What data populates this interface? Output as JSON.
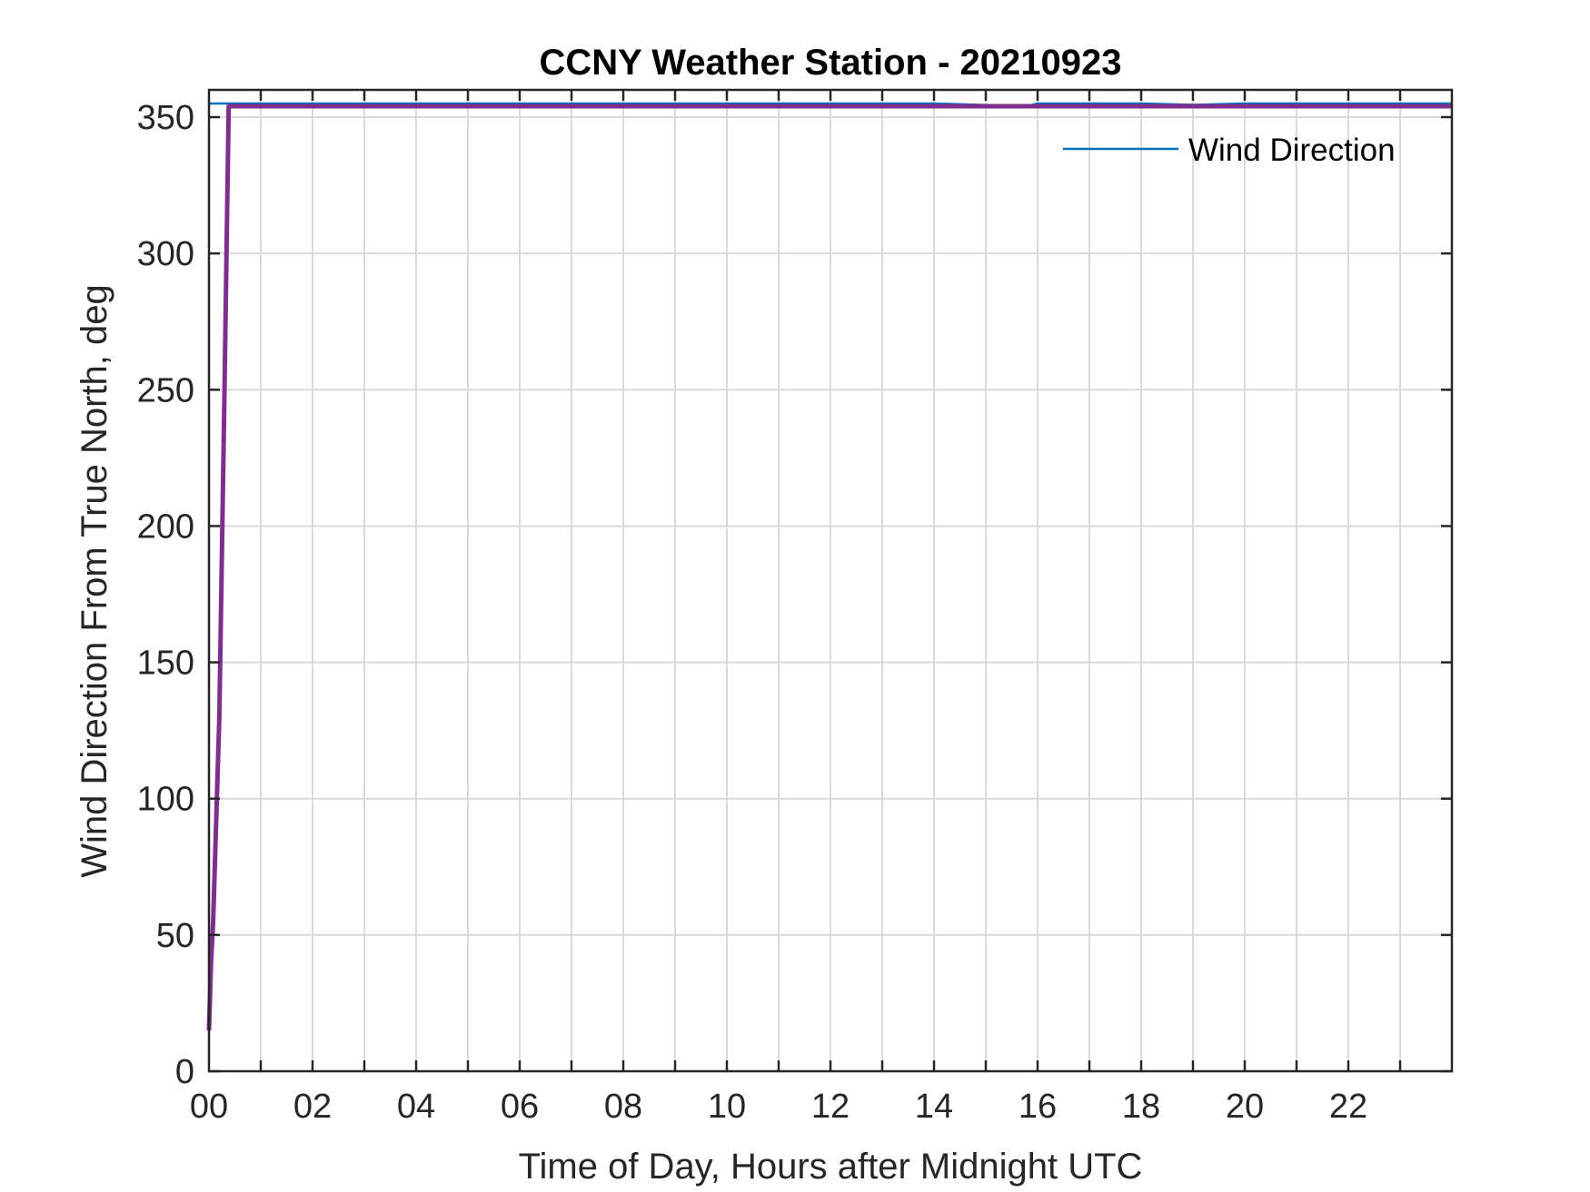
{
  "chart_data": {
    "type": "line",
    "title": "CCNY Weather Station - 20210923",
    "xlabel": "Time of Day, Hours after Midnight UTC",
    "ylabel": "Wind Direction From True North, deg",
    "xlim": [
      0,
      24
    ],
    "ylim": [
      0,
      360
    ],
    "xticks": [
      0,
      2,
      4,
      6,
      8,
      10,
      12,
      14,
      16,
      18,
      20,
      22
    ],
    "xtick_labels": [
      "00",
      "02",
      "04",
      "06",
      "08",
      "10",
      "12",
      "14",
      "16",
      "18",
      "20",
      "22"
    ],
    "yticks": [
      0,
      50,
      100,
      150,
      200,
      250,
      300,
      350
    ],
    "ytick_labels": [
      "0",
      "50",
      "100",
      "150",
      "200",
      "250",
      "300",
      "350"
    ],
    "grid": true,
    "legend_position": "top-right",
    "series": [
      {
        "name": "Wind Direction",
        "color": "#0072bd",
        "x": [
          0,
          0.1,
          0.3,
          1,
          2,
          4,
          6,
          8,
          10,
          12,
          14,
          15.8,
          16,
          18,
          19,
          20,
          21,
          22,
          23,
          24
        ],
        "y": [
          355,
          355,
          355,
          355,
          355,
          355,
          355,
          355,
          355,
          355,
          355,
          354,
          355,
          355,
          354.5,
          355,
          355,
          355,
          355,
          355
        ]
      },
      {
        "color": "#7e2f8e",
        "x": [
          0,
          0.04,
          0.08,
          0.2,
          0.3,
          0.38,
          0.5,
          1,
          2,
          4,
          6,
          8,
          10,
          12,
          14,
          16,
          18,
          20,
          22,
          24
        ],
        "y": [
          15,
          40,
          55,
          130,
          250,
          354,
          354,
          354,
          354,
          354,
          354,
          354,
          354,
          354,
          354,
          354,
          354,
          354,
          354,
          354
        ]
      }
    ]
  }
}
